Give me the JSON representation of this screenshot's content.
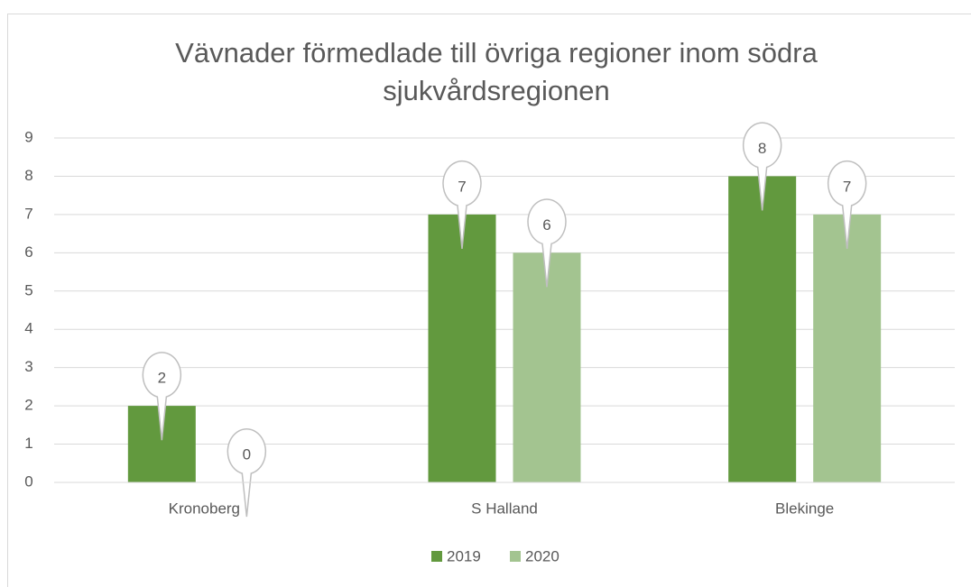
{
  "chart_data": {
    "type": "bar",
    "title": "Vävnader förmedlade till övriga regioner inom södra sjukvårdsregionen",
    "categories": [
      "Kronoberg",
      "S Halland",
      "Blekinge"
    ],
    "series": [
      {
        "name": "2019",
        "color": "#62993e",
        "values": [
          2,
          7,
          8
        ]
      },
      {
        "name": "2020",
        "color": "#a3c490",
        "values": [
          0,
          6,
          7
        ]
      }
    ],
    "ylim": [
      0,
      9
    ],
    "yticks": [
      0,
      1,
      2,
      3,
      4,
      5,
      6,
      7,
      8,
      9
    ],
    "grid": true,
    "legend": "bottom"
  }
}
